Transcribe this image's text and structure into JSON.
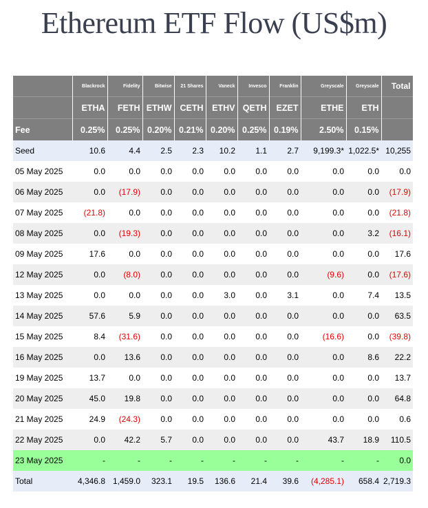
{
  "title": "Ethereum ETF Flow (US$m)",
  "header": {
    "issuers": [
      "Blackrock",
      "Fidelity",
      "Bitwise",
      "21 Shares",
      "Vaneck",
      "Invesco",
      "Franklin",
      "Greyscale",
      "Greyscale"
    ],
    "total_label": "Total",
    "tickers": [
      "ETHA",
      "FETH",
      "ETHW",
      "CETH",
      "ETHV",
      "QETH",
      "EZET",
      "ETHE",
      "ETH"
    ],
    "fee_label": "Fee",
    "fees": [
      "0.25%",
      "0.25%",
      "0.20%",
      "0.21%",
      "0.20%",
      "0.25%",
      "0.19%",
      "2.50%",
      "0.15%"
    ]
  },
  "rows": [
    {
      "date": "Seed",
      "values": [
        "10.6",
        "4.4",
        "2.5",
        "2.3",
        "10.2",
        "1.1",
        "2.7",
        "9,199.3*",
        "1,022.5*"
      ],
      "total": "10,255"
    },
    {
      "date": "05 May 2025",
      "values": [
        "0.0",
        "0.0",
        "0.0",
        "0.0",
        "0.0",
        "0.0",
        "0.0",
        "0.0",
        "0.0"
      ],
      "total": "0.0"
    },
    {
      "date": "06 May 2025",
      "values": [
        "0.0",
        "(17.9)",
        "0.0",
        "0.0",
        "0.0",
        "0.0",
        "0.0",
        "0.0",
        "0.0"
      ],
      "total": "(17.9)"
    },
    {
      "date": "07 May 2025",
      "values": [
        "(21.8)",
        "0.0",
        "0.0",
        "0.0",
        "0.0",
        "0.0",
        "0.0",
        "0.0",
        "0.0"
      ],
      "total": "(21.8)"
    },
    {
      "date": "08 May 2025",
      "values": [
        "0.0",
        "(19.3)",
        "0.0",
        "0.0",
        "0.0",
        "0.0",
        "0.0",
        "0.0",
        "3.2"
      ],
      "total": "(16.1)"
    },
    {
      "date": "09 May 2025",
      "values": [
        "17.6",
        "0.0",
        "0.0",
        "0.0",
        "0.0",
        "0.0",
        "0.0",
        "0.0",
        "0.0"
      ],
      "total": "17.6"
    },
    {
      "date": "12 May 2025",
      "values": [
        "0.0",
        "(8.0)",
        "0.0",
        "0.0",
        "0.0",
        "0.0",
        "0.0",
        "(9.6)",
        "0.0"
      ],
      "total": "(17.6)"
    },
    {
      "date": "13 May 2025",
      "values": [
        "0.0",
        "0.0",
        "0.0",
        "0.0",
        "3.0",
        "0.0",
        "3.1",
        "0.0",
        "7.4"
      ],
      "total": "13.5"
    },
    {
      "date": "14 May 2025",
      "values": [
        "57.6",
        "5.9",
        "0.0",
        "0.0",
        "0.0",
        "0.0",
        "0.0",
        "0.0",
        "0.0"
      ],
      "total": "63.5"
    },
    {
      "date": "15 May 2025",
      "values": [
        "8.4",
        "(31.6)",
        "0.0",
        "0.0",
        "0.0",
        "0.0",
        "0.0",
        "(16.6)",
        "0.0"
      ],
      "total": "(39.8)"
    },
    {
      "date": "16 May 2025",
      "values": [
        "0.0",
        "13.6",
        "0.0",
        "0.0",
        "0.0",
        "0.0",
        "0.0",
        "0.0",
        "8.6"
      ],
      "total": "22.2"
    },
    {
      "date": "19 May 2025",
      "values": [
        "13.7",
        "0.0",
        "0.0",
        "0.0",
        "0.0",
        "0.0",
        "0.0",
        "0.0",
        "0.0"
      ],
      "total": "13.7"
    },
    {
      "date": "20 May 2025",
      "values": [
        "45.0",
        "19.8",
        "0.0",
        "0.0",
        "0.0",
        "0.0",
        "0.0",
        "0.0",
        "0.0"
      ],
      "total": "64.8"
    },
    {
      "date": "21 May 2025",
      "values": [
        "24.9",
        "(24.3)",
        "0.0",
        "0.0",
        "0.0",
        "0.0",
        "0.0",
        "0.0",
        "0.0"
      ],
      "total": "0.6"
    },
    {
      "date": "22 May 2025",
      "values": [
        "0.0",
        "42.2",
        "5.7",
        "0.0",
        "0.0",
        "0.0",
        "0.0",
        "43.7",
        "18.9"
      ],
      "total": "110.5"
    },
    {
      "date": "23 May 2025",
      "values": [
        "-",
        "-",
        "-",
        "-",
        "-",
        "-",
        "-",
        "-",
        "-"
      ],
      "total": "0.0"
    },
    {
      "date": "Total",
      "values": [
        "4,346.8",
        "1,459.0",
        "323.1",
        "19.5",
        "136.6",
        "21.4",
        "39.6",
        "(4,285.1)",
        "658.4"
      ],
      "total": "2,719.3"
    }
  ],
  "colors": {
    "header_bg": "#7f7f7f",
    "negative": "#e00000",
    "highlight_row": "#99ff99",
    "seed_total_bg": "#e6ecf8",
    "alt_row_bg": "#eeeeee",
    "title": "#3a4050"
  }
}
